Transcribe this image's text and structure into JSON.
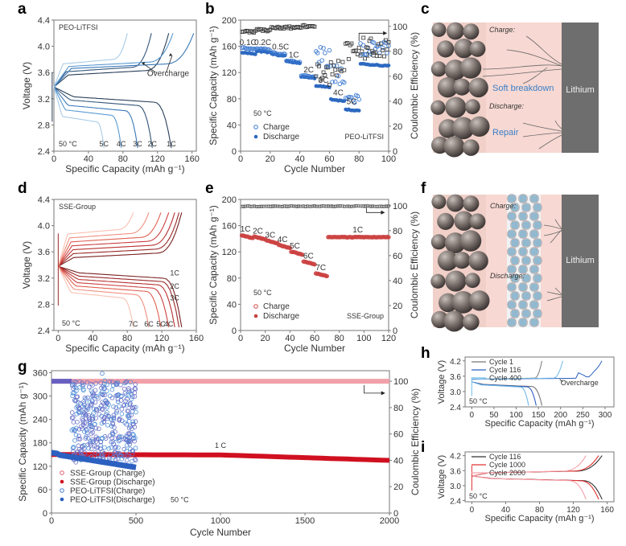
{
  "panel_labels": [
    "a",
    "b",
    "c",
    "d",
    "e",
    "f",
    "g",
    "h",
    "i"
  ],
  "chart_data": [
    {
      "id": "a",
      "type": "line",
      "title": "PEO-LiTFSI",
      "xlabel": "Specific Capacity (mAh g⁻¹)",
      "ylabel": "Voltage (V)",
      "xlim": [
        0,
        165
      ],
      "ylim": [
        2.4,
        4.4
      ],
      "xticks": [
        0,
        40,
        80,
        120,
        160
      ],
      "yticks": [
        2.4,
        2.8,
        3.2,
        3.6,
        4.0,
        4.4
      ],
      "annotations": [
        "50 °C",
        "Overcharge"
      ],
      "rate_labels": [
        "5C",
        "4C",
        "3C",
        "2C",
        "1C"
      ],
      "series": [
        {
          "name": "1C",
          "color": "#2a3f5a",
          "discharge_end": 136,
          "charge_end": 133,
          "plateau_d": 3.25,
          "plateau_c": 3.55
        },
        {
          "name": "2C",
          "color": "#34557a",
          "discharge_end": 114,
          "charge_end": 113,
          "plateau_d": 3.2,
          "plateau_c": 3.6
        },
        {
          "name": "3C",
          "color": "#3a78b8",
          "discharge_end": 97,
          "charge_end": 162,
          "plateau_d": 3.12,
          "plateau_c": 3.65,
          "overcharge": true
        },
        {
          "name": "4C",
          "color": "#5a9ad2",
          "discharge_end": 78,
          "charge_end": 138,
          "plateau_d": 3.05,
          "plateau_c": 3.68,
          "overcharge": true
        },
        {
          "name": "5C",
          "color": "#a8cce8",
          "discharge_end": 58,
          "charge_end": 85,
          "plateau_d": 2.95,
          "plateau_c": 3.72
        }
      ]
    },
    {
      "id": "b",
      "type": "scatter",
      "xlabel": "Cycle Number",
      "ylabel": "Specific Capacity (mAh g⁻¹)",
      "y2label": "Coulombic Efficiency (%)",
      "xlim": [
        0,
        100
      ],
      "ylim": [
        0,
        200
      ],
      "y2lim": [
        0,
        105
      ],
      "xticks": [
        0,
        20,
        40,
        60,
        80,
        100
      ],
      "yticks": [
        0,
        40,
        80,
        120,
        160,
        200
      ],
      "y2ticks": [
        0,
        20,
        40,
        60,
        80,
        100
      ],
      "legend": [
        "Charge",
        "Discharge"
      ],
      "legend_position": "bottom-left",
      "annotations": [
        "50 °C",
        "PEO-LiTFSI"
      ],
      "rate_labels": [
        {
          "text": "0.1C",
          "x": 5,
          "y": 162
        },
        {
          "text": "0.2C",
          "x": 15,
          "y": 162
        },
        {
          "text": "0.5C",
          "x": 27,
          "y": 155
        },
        {
          "text": "1C",
          "x": 36,
          "y": 143
        },
        {
          "text": "2C",
          "x": 46,
          "y": 120
        },
        {
          "text": "3C",
          "x": 56,
          "y": 104
        },
        {
          "text": "4C",
          "x": 66,
          "y": 85
        },
        {
          "text": "5C",
          "x": 75,
          "y": 72
        },
        {
          "text": "1C",
          "x": 88,
          "y": 143
        }
      ],
      "segments": [
        {
          "rate": "0.1C",
          "from": 1,
          "to": 10,
          "discharge": 151,
          "charge": 158,
          "ce": 96
        },
        {
          "rate": "0.2C",
          "from": 11,
          "to": 20,
          "discharge": 153,
          "charge": 157,
          "ce": 97
        },
        {
          "rate": "0.5C",
          "from": 21,
          "to": 30,
          "discharge": 148,
          "charge": 150,
          "ce": 99
        },
        {
          "rate": "1C",
          "from": 31,
          "to": 40,
          "discharge": 137,
          "charge": 138,
          "ce": 99
        },
        {
          "rate": "2C",
          "from": 41,
          "to": 50,
          "discharge": 114,
          "charge": 116,
          "ce": 100
        },
        {
          "rate": "3C",
          "from": 51,
          "to": 60,
          "discharge": 100,
          "charge": 158,
          "ce": 62
        },
        {
          "rate": "4C",
          "from": 61,
          "to": 70,
          "discharge": 79,
          "charge": 122,
          "ce": 64
        },
        {
          "rate": "5C",
          "from": 71,
          "to": 80,
          "discharge": 64,
          "charge": 82,
          "ce": 80
        },
        {
          "rate": "1C",
          "from": 81,
          "to": 100,
          "discharge": 133,
          "charge": 162,
          "ce": 83
        }
      ],
      "colors": {
        "charge": "#3a78d0",
        "discharge": "#2c68c0",
        "ce": "#333333"
      }
    },
    {
      "id": "d",
      "type": "line",
      "title": "SSE-Group",
      "xlabel": "Specific Capacity (mAh g⁻¹)",
      "ylabel": "Voltage (V)",
      "xlim": [
        -5,
        160
      ],
      "ylim": [
        2.4,
        4.4
      ],
      "xticks": [
        0,
        40,
        80,
        120,
        160
      ],
      "yticks": [
        2.4,
        2.8,
        3.2,
        3.6,
        4.0,
        4.4
      ],
      "annotations": [
        "50 °C"
      ],
      "rate_labels": [
        "1C",
        "2C",
        "3C",
        "4C",
        "5C",
        "6C",
        "7C"
      ],
      "series": [
        {
          "name": "1C",
          "color": "#7a2020",
          "discharge_end": 143
        },
        {
          "name": "2C",
          "color": "#9a2828",
          "discharge_end": 140
        },
        {
          "name": "3C",
          "color": "#b83030",
          "discharge_end": 135
        },
        {
          "name": "4C",
          "color": "#cc4040",
          "discharge_end": 128
        },
        {
          "name": "5C",
          "color": "#e06050",
          "discharge_end": 119
        },
        {
          "name": "6C",
          "color": "#f09080",
          "discharge_end": 105
        },
        {
          "name": "7C",
          "color": "#f8c0b0",
          "discharge_end": 87
        }
      ]
    },
    {
      "id": "e",
      "type": "scatter",
      "xlabel": "Cycle Number",
      "ylabel": "Specific Capacity (mAh g⁻¹)",
      "y2label": "Coulombic Efficiency (%)",
      "xlim": [
        0,
        120
      ],
      "ylim": [
        0,
        200
      ],
      "y2lim": [
        0,
        105
      ],
      "xticks": [
        0,
        20,
        40,
        60,
        80,
        100,
        120
      ],
      "yticks": [
        0,
        40,
        80,
        120,
        160,
        200
      ],
      "y2ticks": [
        0,
        20,
        40,
        60,
        80,
        100
      ],
      "legend": [
        "Charge",
        "Discharge"
      ],
      "legend_position": "bottom-left",
      "annotations": [
        "50 °C",
        "SSE-Group"
      ],
      "rate_labels": [
        {
          "text": "1C",
          "x": 4,
          "y": 151
        },
        {
          "text": "2C",
          "x": 14,
          "y": 148
        },
        {
          "text": "3C",
          "x": 24,
          "y": 142
        },
        {
          "text": "4C",
          "x": 34,
          "y": 135
        },
        {
          "text": "5C",
          "x": 44,
          "y": 125
        },
        {
          "text": "6C",
          "x": 55,
          "y": 110
        },
        {
          "text": "7C",
          "x": 65,
          "y": 92
        },
        {
          "text": "1C",
          "x": 95,
          "y": 150
        }
      ],
      "segments": [
        {
          "rate": "1C",
          "from": 1,
          "to": 10,
          "capacity": 142,
          "ce": 99.5
        },
        {
          "rate": "2C",
          "from": 11,
          "to": 20,
          "capacity": 140,
          "ce": 99.5
        },
        {
          "rate": "3C",
          "from": 21,
          "to": 30,
          "capacity": 134,
          "ce": 99.5
        },
        {
          "rate": "4C",
          "from": 31,
          "to": 40,
          "capacity": 127,
          "ce": 99.5
        },
        {
          "rate": "5C",
          "from": 41,
          "to": 50,
          "capacity": 117,
          "ce": 99.5
        },
        {
          "rate": "6C",
          "from": 51,
          "to": 60,
          "capacity": 102,
          "ce": 99.5
        },
        {
          "rate": "7C",
          "from": 61,
          "to": 70,
          "capacity": 84,
          "ce": 99.5
        },
        {
          "rate": "1C",
          "from": 71,
          "to": 120,
          "capacity": 142,
          "ce": 99.5
        }
      ],
      "colors": {
        "charge": "#d04848",
        "discharge": "#c84040",
        "ce": "#555555"
      }
    },
    {
      "id": "g",
      "type": "scatter",
      "xlabel": "Cycle Number",
      "ylabel": "Specific Capacity (mAh g⁻¹)",
      "y2label": "Coulombic Efficiency (%)",
      "xlim": [
        0,
        2000
      ],
      "ylim": [
        0,
        365
      ],
      "y2lim": [
        0,
        108
      ],
      "xticks": [
        0,
        500,
        1000,
        1500,
        2000
      ],
      "yticks": [
        0,
        60,
        120,
        180,
        240,
        300,
        360
      ],
      "y2ticks": [
        0,
        20,
        40,
        60,
        80,
        100
      ],
      "annotations": [
        "1 C",
        "50 °C"
      ],
      "legend": [
        "SSE-Group (Charge)",
        "SSE-Group (Discharge)",
        "PEO-LiTFSI(Charge)",
        "PEO-LiTFSI(Discharge)"
      ],
      "legend_position": "bottom-left",
      "series": [
        {
          "name": "SSE-Group CE",
          "color": "#f0a0a8",
          "from": 0,
          "to": 2000,
          "value_pct": 100
        },
        {
          "name": "SSE-Group (Discharge)",
          "color": "#d01020",
          "from": 0,
          "to": 2000,
          "start": 150,
          "mid": 150,
          "end": 135
        },
        {
          "name": "PEO-LiTFSI CE",
          "color": "#6860c0",
          "from": 0,
          "to": 120,
          "value_pct": 100
        },
        {
          "name": "PEO-LiTFSI(Charge)",
          "color": "#5080d0",
          "from": 120,
          "to": 500,
          "range": [
            125,
            340
          ]
        },
        {
          "name": "PEO-LiTFSI(Discharge)",
          "color": "#2c60c0",
          "from": 0,
          "to": 500,
          "start": 155,
          "end": 120
        }
      ]
    },
    {
      "id": "h",
      "type": "line",
      "xlabel": "Specific Capacity (mAh g⁻¹)",
      "ylabel": "Voltage (V)",
      "xlim": [
        -15,
        320
      ],
      "ylim": [
        2.4,
        4.35
      ],
      "xticks": [
        0,
        50,
        100,
        150,
        200,
        250,
        300
      ],
      "yticks": [
        2.4,
        3.0,
        3.6,
        4.2
      ],
      "annotations": [
        "50 °C",
        "Overcharge"
      ],
      "legend": [
        "Cycle 1",
        "Cycle 116",
        "Cycle 400"
      ],
      "series": [
        {
          "name": "Cycle 1",
          "color": "#777777",
          "discharge_end": 158,
          "charge_end": 158
        },
        {
          "name": "Cycle 116",
          "color": "#2c60c0",
          "discharge_end": 145,
          "charge_end": 293
        },
        {
          "name": "Cycle 400",
          "color": "#70b8e8",
          "discharge_end": 128,
          "charge_end": 205
        }
      ]
    },
    {
      "id": "i",
      "type": "line",
      "xlabel": "Specific Capacity (mAh g⁻¹)",
      "ylabel": "Voltage (V)",
      "xlim": [
        -8,
        168
      ],
      "ylim": [
        2.35,
        4.35
      ],
      "xticks": [
        0,
        40,
        80,
        120,
        160
      ],
      "yticks": [
        2.4,
        3.0,
        3.6,
        4.2
      ],
      "annotations": [
        "50 °C"
      ],
      "legend": [
        "Cycle 116",
        "Cycle 1000",
        "Cycle 2000"
      ],
      "series": [
        {
          "name": "Cycle 116",
          "color": "#333333",
          "discharge_end": 154
        },
        {
          "name": "Cycle 1000",
          "color": "#e03030",
          "discharge_end": 150
        },
        {
          "name": "Cycle 2000",
          "color": "#f4a0a8",
          "discharge_end": 135
        }
      ]
    }
  ],
  "schematic_c": {
    "charge_label": "Charge:",
    "discharge_label": "Discharge:",
    "soft_breakdown_label": "Soft breakdown",
    "repair_label": "Repair",
    "lithium_label": "Lithium"
  },
  "schematic_f": {
    "charge_label": "Charge:",
    "discharge_label": "Discharge:",
    "lithium_label": "Lithium"
  },
  "colors": {
    "electrolyte_bg": "#f7d8d2",
    "lithium": "#6e6e6e",
    "particle": "#7a706c",
    "label_blue": "#3a80c8"
  }
}
